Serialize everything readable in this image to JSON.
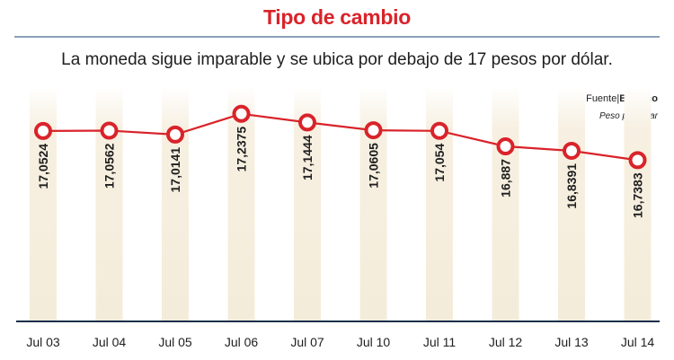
{
  "header": {
    "title": "Tipo de cambio",
    "subtitle": "La moneda sigue imparable y se ubica por debajo de 17 pesos por dólar.",
    "source_label": "Fuente|",
    "source_name": "Banxico",
    "unit_label": "Peso por dólar"
  },
  "colors": {
    "accent": "#d9232a",
    "column": "#f6efe0",
    "axis": "#1a2f4a"
  },
  "chart_data": {
    "type": "line",
    "title": "Tipo de cambio",
    "xlabel": "",
    "ylabel": "Peso por dólar",
    "categories": [
      "Jul 03",
      "Jul 04",
      "Jul 05",
      "Jul 06",
      "Jul 07",
      "Jul 10",
      "Jul 11",
      "Jul 12",
      "Jul 13",
      "Jul 14"
    ],
    "series": [
      {
        "name": "Peso por dólar",
        "values": [
          17.0524,
          17.0562,
          17.0141,
          17.2375,
          17.1444,
          17.0605,
          17.054,
          16.887,
          16.8391,
          16.7383
        ],
        "labels": [
          "17,0524",
          "17,0562",
          "17,0141",
          "17,2375",
          "17,1444",
          "17,0605",
          "17,054",
          "16,887",
          "16,8391",
          "16,7383"
        ]
      }
    ],
    "ylim": [
      15.0,
      17.4
    ],
    "grid": false,
    "legend": "none"
  }
}
